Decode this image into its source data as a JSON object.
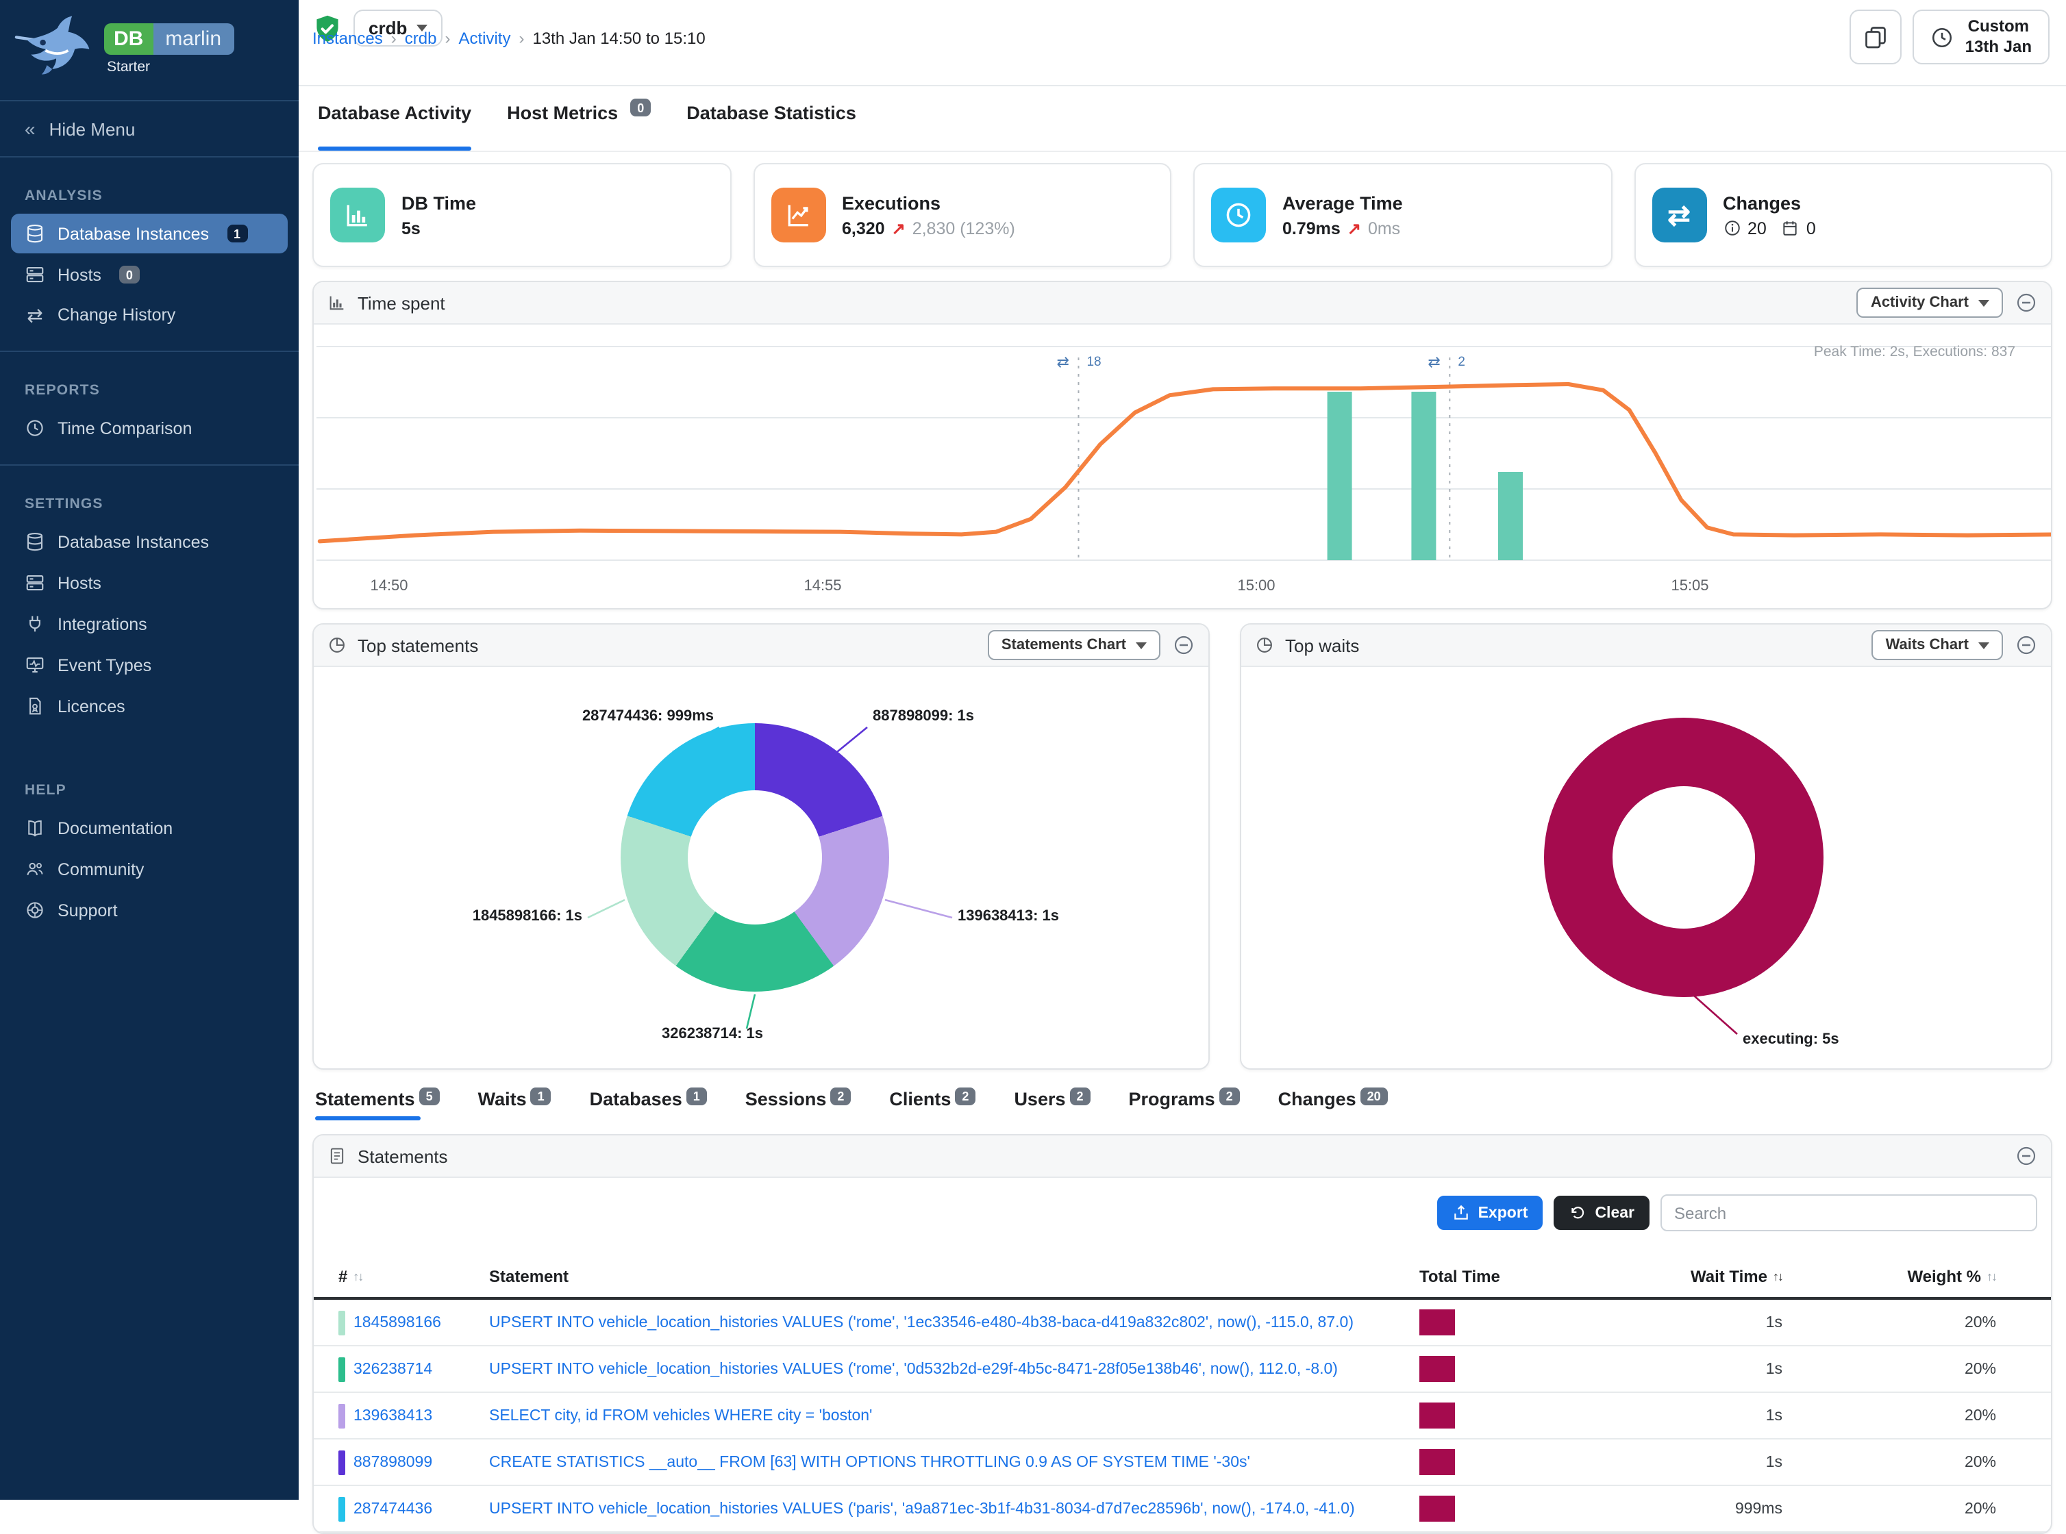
{
  "sidebar": {
    "brand": {
      "db": "DB",
      "name": "marlin",
      "edition": "Starter"
    },
    "hide_menu": "Hide Menu",
    "sections": [
      {
        "title": "ANALYSIS",
        "items": [
          {
            "label": "Database Instances",
            "badge": "1"
          },
          {
            "label": "Hosts",
            "badge": "0"
          },
          {
            "label": "Change History"
          }
        ]
      },
      {
        "title": "REPORTS",
        "items": [
          {
            "label": "Time Comparison"
          }
        ]
      },
      {
        "title": "SETTINGS",
        "items": [
          {
            "label": "Database Instances"
          },
          {
            "label": "Hosts"
          },
          {
            "label": "Integrations"
          },
          {
            "label": "Event Types"
          },
          {
            "label": "Licences"
          }
        ]
      },
      {
        "title": "HELP",
        "items": [
          {
            "label": "Documentation"
          },
          {
            "label": "Community"
          },
          {
            "label": "Support"
          }
        ]
      }
    ]
  },
  "header": {
    "instance": "crdb",
    "breadcrumb": {
      "l1": "Instances",
      "l2": "crdb",
      "l3": "Activity",
      "current": "13th Jan 14:50 to 15:10"
    },
    "time_button": {
      "line1": "Custom",
      "line2": "13th Jan"
    }
  },
  "top_tabs": [
    {
      "label": "Database Activity"
    },
    {
      "label": "Host Metrics",
      "badge": "0"
    },
    {
      "label": "Database Statistics"
    }
  ],
  "metric_cards": [
    {
      "title": "DB Time",
      "value": "5s",
      "color": "#53cdb4"
    },
    {
      "title": "Executions",
      "value": "6,320",
      "delta": "2,830 (123%)",
      "color": "#f5833c"
    },
    {
      "title": "Average Time",
      "value": "0.79ms",
      "delta": "0ms",
      "color": "#29bdf2"
    },
    {
      "title": "Changes",
      "info_count": "20",
      "event_count": "0",
      "color": "#1b8dbf"
    }
  ],
  "time_spent": {
    "title": "Time spent",
    "chart_button": "Activity Chart",
    "peak_note": "Peak Time: 2s, Executions: 837",
    "chart_data": {
      "type": "line",
      "title": "Time spent",
      "x_ticks": [
        "14:50",
        "14:55",
        "15:00",
        "15:05"
      ],
      "ylim": [
        0,
        2.49
      ],
      "line": {
        "name": "DB Time (s)",
        "color": "#f5813f",
        "points": [
          [
            -0.8,
            0.22
          ],
          [
            0.3,
            0.29
          ],
          [
            1.2,
            0.33
          ],
          [
            2.2,
            0.345
          ],
          [
            3.2,
            0.34
          ],
          [
            4.2,
            0.335
          ],
          [
            5.2,
            0.33
          ],
          [
            6.0,
            0.31
          ],
          [
            6.6,
            0.3
          ],
          [
            7.0,
            0.33
          ],
          [
            7.4,
            0.48
          ],
          [
            7.8,
            0.85
          ],
          [
            8.2,
            1.35
          ],
          [
            8.6,
            1.72
          ],
          [
            9.0,
            1.92
          ],
          [
            9.5,
            1.99
          ],
          [
            10.2,
            2.0
          ],
          [
            11.2,
            2.0
          ],
          [
            12.2,
            2.02
          ],
          [
            13.0,
            2.04
          ],
          [
            13.6,
            2.05
          ],
          [
            14.0,
            1.98
          ],
          [
            14.3,
            1.75
          ],
          [
            14.6,
            1.25
          ],
          [
            14.9,
            0.7
          ],
          [
            15.2,
            0.38
          ],
          [
            15.5,
            0.3
          ],
          [
            16.2,
            0.29
          ],
          [
            17.2,
            0.3
          ],
          [
            18.2,
            0.29
          ],
          [
            19.2,
            0.3
          ]
        ]
      },
      "bars": {
        "name": "Executions",
        "color": "#66cbb3",
        "ymax": 1040,
        "points": [
          [
            10.96,
            820
          ],
          [
            11.93,
            820
          ],
          [
            12.93,
            430
          ]
        ]
      },
      "markers": [
        {
          "t": 7.95,
          "label": "18"
        },
        {
          "t": 12.23,
          "label": "2"
        }
      ]
    }
  },
  "top_statements": {
    "title": "Top statements",
    "chart_button": "Statements Chart",
    "chart_data": {
      "type": "pie",
      "title": "Top statements",
      "slices": [
        {
          "label": "887898099: 1s",
          "value": 1000,
          "color": "#5b33d6"
        },
        {
          "label": "139638413: 1s",
          "value": 1000,
          "color": "#b9a0e8"
        },
        {
          "label": "326238714: 1s",
          "value": 1000,
          "color": "#2dbe8d"
        },
        {
          "label": "1845898166: 1s",
          "value": 1000,
          "color": "#aee4cd"
        },
        {
          "label": "287474436: 999ms",
          "value": 999,
          "color": "#25c2ea"
        }
      ]
    }
  },
  "top_waits": {
    "title": "Top waits",
    "chart_button": "Waits Chart",
    "chart_data": {
      "type": "pie",
      "title": "Top waits",
      "slices": [
        {
          "label": "executing: 5s",
          "value": 5000,
          "color": "#a50b4e"
        }
      ]
    }
  },
  "detail_tabs": [
    {
      "label": "Statements",
      "badge": "5"
    },
    {
      "label": "Waits",
      "badge": "1"
    },
    {
      "label": "Databases",
      "badge": "1"
    },
    {
      "label": "Sessions",
      "badge": "2"
    },
    {
      "label": "Clients",
      "badge": "2"
    },
    {
      "label": "Users",
      "badge": "2"
    },
    {
      "label": "Programs",
      "badge": "2"
    },
    {
      "label": "Changes",
      "badge": "20"
    }
  ],
  "statements_panel": {
    "title": "Statements",
    "export_label": "Export",
    "clear_label": "Clear",
    "search_placeholder": "Search",
    "bar_color": "#a50b4e",
    "columns": {
      "c1": "#",
      "c2": "Statement",
      "c3": "Total Time",
      "c4": "Wait Time",
      "c5": "Weight %"
    },
    "rows": [
      {
        "id": "1845898166",
        "color": "#aee4cd",
        "statement": "UPSERT INTO vehicle_location_histories VALUES ('rome', '1ec33546-e480-4b38-baca-d419a832c802', now(), -115.0, 87.0)",
        "wait_time": "1s",
        "weight": "20%"
      },
      {
        "id": "326238714",
        "color": "#2dbe8d",
        "statement": "UPSERT INTO vehicle_location_histories VALUES ('rome', '0d532b2d-e29f-4b5c-8471-28f05e138b46', now(), 112.0, -8.0)",
        "wait_time": "1s",
        "weight": "20%"
      },
      {
        "id": "139638413",
        "color": "#b9a0e8",
        "statement": "SELECT city, id FROM vehicles WHERE city = 'boston'",
        "wait_time": "1s",
        "weight": "20%"
      },
      {
        "id": "887898099",
        "color": "#5b33d6",
        "statement": "CREATE STATISTICS __auto__ FROM [63] WITH OPTIONS THROTTLING 0.9 AS OF SYSTEM TIME '-30s'",
        "wait_time": "1s",
        "weight": "20%"
      },
      {
        "id": "287474436",
        "color": "#25c2ea",
        "statement": "UPSERT INTO vehicle_location_histories VALUES ('paris', 'a9a871ec-3b1f-4b31-8034-d7d7ec28596b', now(), -174.0, -41.0)",
        "wait_time": "999ms",
        "weight": "20%"
      }
    ]
  }
}
